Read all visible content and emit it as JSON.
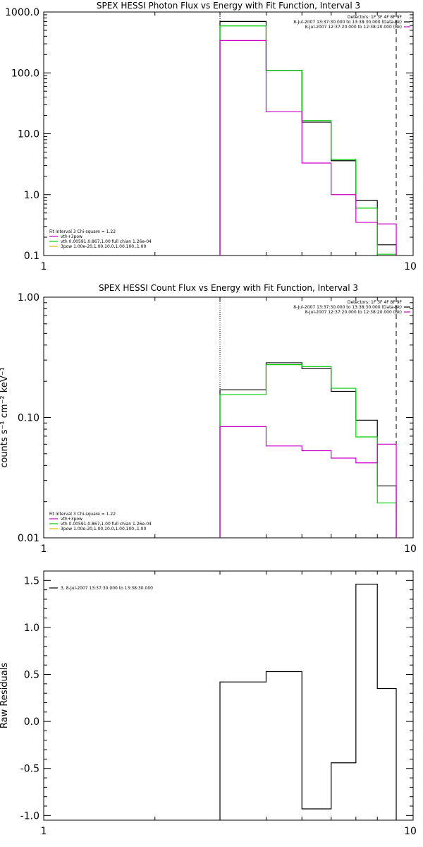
{
  "chart_data": [
    {
      "type": "line",
      "title": "SPEX HESSI Photon Flux vs Energy with Fit Function, Interval 3",
      "xscale": "log",
      "yscale": "log",
      "xlim": [
        1,
        10
      ],
      "ylim": [
        0.1,
        1000
      ],
      "x_ticks": [
        "1",
        "10"
      ],
      "y_ticks": [
        "0.1",
        "1.0",
        "10.0",
        "100.0",
        "1000.0"
      ],
      "ylabel": "",
      "bin_edges": [
        3,
        4,
        5,
        6,
        7,
        8,
        9
      ],
      "reference_lines": [
        {
          "x": 3,
          "style": "dotted"
        },
        {
          "x": 9,
          "style": "dashed"
        }
      ],
      "legend_top": {
        "header": "Detectors: 1F 3F 4F 8F 9F",
        "entries": [
          {
            "text": "8-Jul-2007 13:37:30.000 to 13:38:30.000 (Data-Bk)",
            "color": "#000000"
          },
          {
            "text": "8-Jul-2007 12:37:20.000 to 12:38:20.000 (Bk)",
            "color": "#cc00cc"
          }
        ]
      },
      "legend_bottom": {
        "header": "Fit Interval 3   Chi-square = 1.22",
        "entries": [
          {
            "text": "vth+3pow",
            "color": "#cc00cc"
          },
          {
            "text": "vth 0.00591,0.867,1.00   full chian 1.26e-04",
            "color": "#00cc00"
          },
          {
            "text": "3pow 1.00e-20,1.00,10.0,1.00,100.,1.00",
            "color": "#ddbb00"
          }
        ]
      },
      "series": [
        {
          "color": "#000000",
          "values": [
            700,
            110,
            15.5,
            3.6,
            0.8,
            0.15
          ]
        },
        {
          "color": "#00cc00",
          "values": [
            590,
            110,
            16.5,
            3.8,
            0.6,
            0.105
          ]
        },
        {
          "color": "#cc00cc",
          "values": [
            340,
            23,
            3.3,
            1.0,
            0.35,
            0.33
          ]
        }
      ]
    },
    {
      "type": "line",
      "title": "SPEX HESSI Count Flux vs Energy with Fit Function, Interval 3",
      "xscale": "log",
      "yscale": "log",
      "xlim": [
        1,
        10
      ],
      "ylim": [
        0.01,
        1.0
      ],
      "x_ticks": [
        "1",
        "10"
      ],
      "y_ticks": [
        "0.01",
        "0.10",
        "1.00"
      ],
      "ylabel": "counts s⁻¹ cm⁻² keV⁻¹",
      "bin_edges": [
        3,
        4,
        5,
        6,
        7,
        8,
        9
      ],
      "reference_lines": [
        {
          "x": 3,
          "style": "dotted"
        },
        {
          "x": 9,
          "style": "dashed"
        }
      ],
      "legend_top": {
        "header": "Detectors: 1F 3F 4F 8F 9F",
        "entries": [
          {
            "text": "8-Jul-2007 13:37:30.000 to 13:38:30.000 (Data-Bk)",
            "color": "#000000"
          },
          {
            "text": "8-Jul-2007 12:37:20.000 to 12:38:20.000 (Bk)",
            "color": "#cc00cc"
          }
        ]
      },
      "legend_bottom": {
        "header": "Fit Interval 3   Chi-square = 1.22",
        "entries": [
          {
            "text": "vth+3pow",
            "color": "#cc00cc"
          },
          {
            "text": "vth 0.00591,0.867,1.00   full chian 1.26e-04",
            "color": "#00cc00"
          },
          {
            "text": "3pow 1.00e-20,1.00,10.0,1.00,100.,1.00",
            "color": "#ddbb00"
          }
        ]
      },
      "series": [
        {
          "color": "#000000",
          "values": [
            0.17,
            0.285,
            0.255,
            0.165,
            0.095,
            0.027
          ]
        },
        {
          "color": "#00cc00",
          "values": [
            0.155,
            0.275,
            0.265,
            0.175,
            0.069,
            0.0195
          ]
        },
        {
          "color": "#cc00cc",
          "values": [
            0.084,
            0.058,
            0.053,
            0.046,
            0.042,
            0.06
          ]
        }
      ]
    },
    {
      "type": "line",
      "title": "",
      "xscale": "log",
      "yscale": "linear",
      "xlim": [
        1,
        10
      ],
      "ylim": [
        -1.05,
        1.6
      ],
      "x_ticks": [
        "1",
        "10"
      ],
      "y_ticks": [
        "-1.0",
        "-0.5",
        "0.0",
        "0.5",
        "1.0",
        "1.5"
      ],
      "ylabel": "Raw Residuals",
      "bin_edges": [
        3,
        4,
        5,
        6,
        7,
        8,
        9
      ],
      "reference_lines": [],
      "legend_top": {
        "header": "",
        "entries": [
          {
            "text": "3,  8-Jul-2007 13:37:30.000 to 13:38:30.000",
            "color": "#000000"
          }
        ]
      },
      "legend_bottom": {
        "header": "",
        "entries": []
      },
      "series": [
        {
          "color": "#000000",
          "values": [
            0.42,
            0.53,
            -0.93,
            -0.44,
            1.46,
            0.35
          ]
        }
      ]
    }
  ]
}
